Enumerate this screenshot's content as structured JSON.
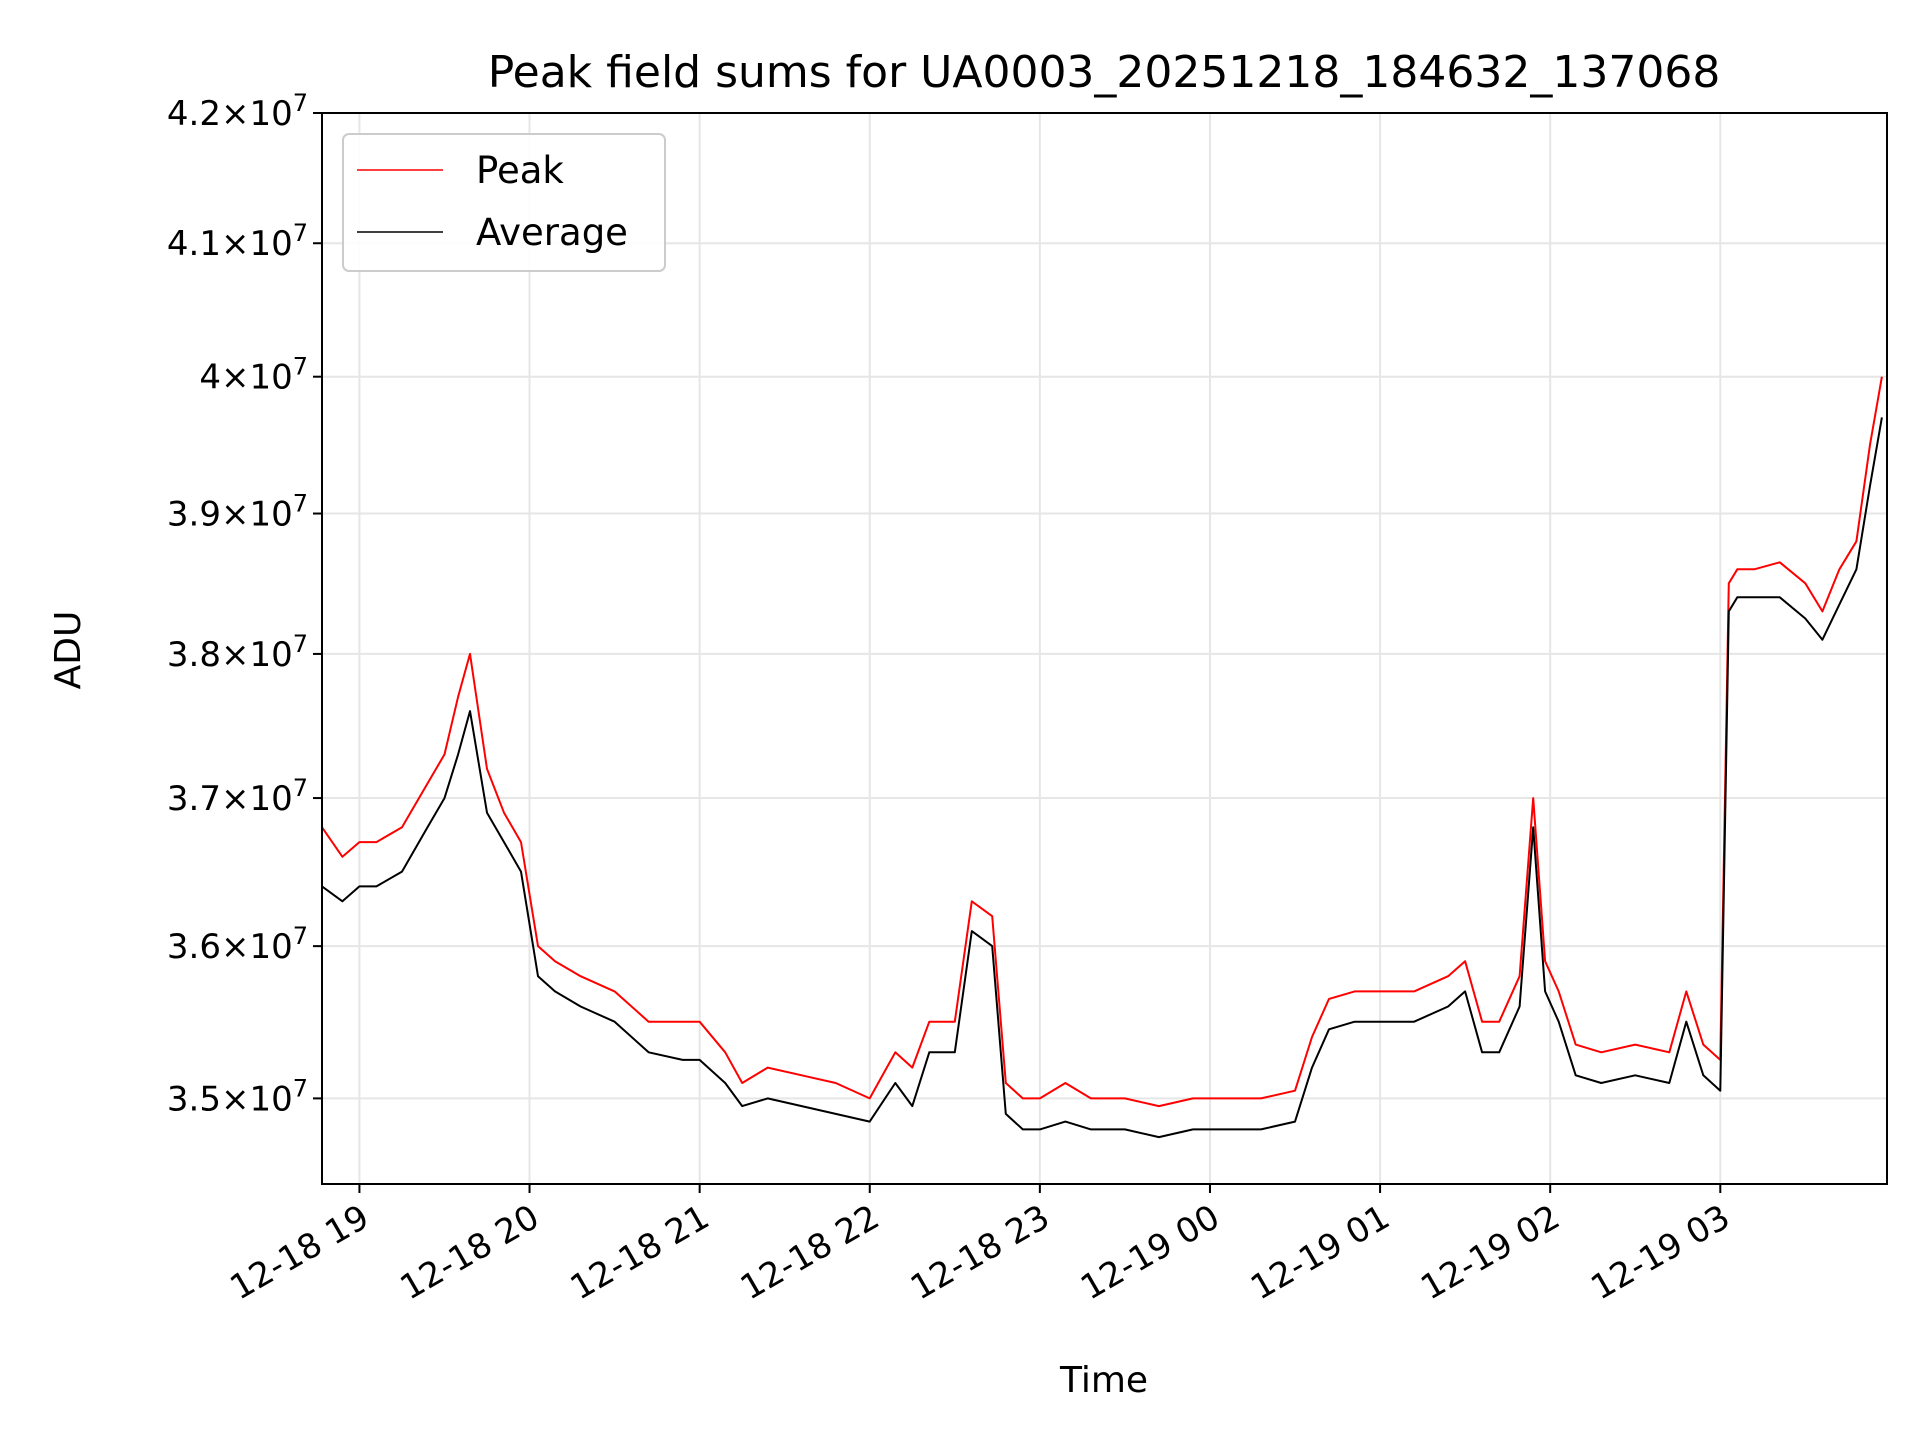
{
  "chart_data": {
    "type": "line",
    "title": "Peak field sums for UA0003_20251218_184632_137068",
    "xlabel": "Time",
    "ylabel": "ADU",
    "x_unit": "hours since 12-18 00:00",
    "xlim": [
      18.78,
      27.98
    ],
    "ylim": [
      34450000,
      42000000
    ],
    "y_scale": "log",
    "grid": true,
    "legend": "top-left",
    "x_ticks": [
      {
        "value": 19,
        "label": "12-18 19"
      },
      {
        "value": 20,
        "label": "12-18 20"
      },
      {
        "value": 21,
        "label": "12-18 21"
      },
      {
        "value": 22,
        "label": "12-18 22"
      },
      {
        "value": 23,
        "label": "12-18 23"
      },
      {
        "value": 24,
        "label": "12-19 00"
      },
      {
        "value": 25,
        "label": "12-19 01"
      },
      {
        "value": 26,
        "label": "12-19 02"
      },
      {
        "value": 27,
        "label": "12-19 03"
      }
    ],
    "y_ticks": [
      {
        "value": 35000000,
        "mantissa": "3.5",
        "exponent": "7"
      },
      {
        "value": 36000000,
        "mantissa": "3.6",
        "exponent": "7"
      },
      {
        "value": 37000000,
        "mantissa": "3.7",
        "exponent": "7"
      },
      {
        "value": 38000000,
        "mantissa": "3.8",
        "exponent": "7"
      },
      {
        "value": 39000000,
        "mantissa": "3.9",
        "exponent": "7"
      },
      {
        "value": 40000000,
        "mantissa": "4",
        "exponent": "7"
      },
      {
        "value": 41000000,
        "mantissa": "4.1",
        "exponent": "7"
      },
      {
        "value": 42000000,
        "mantissa": "4.2",
        "exponent": "7"
      }
    ],
    "series": [
      {
        "name": "Peak",
        "color": "#ff0000",
        "x": [
          18.78,
          18.9,
          19.0,
          19.1,
          19.25,
          19.4,
          19.5,
          19.58,
          19.65,
          19.75,
          19.85,
          19.95,
          20.05,
          20.15,
          20.3,
          20.5,
          20.7,
          20.9,
          21.0,
          21.15,
          21.25,
          21.4,
          21.6,
          21.8,
          22.0,
          22.15,
          22.25,
          22.35,
          22.5,
          22.6,
          22.72,
          22.8,
          22.9,
          23.0,
          23.15,
          23.3,
          23.5,
          23.7,
          23.9,
          24.1,
          24.3,
          24.5,
          24.6,
          24.7,
          24.85,
          25.0,
          25.2,
          25.4,
          25.5,
          25.6,
          25.7,
          25.82,
          25.9,
          25.97,
          26.05,
          26.15,
          26.3,
          26.5,
          26.7,
          26.8,
          26.9,
          27.0,
          27.05,
          27.1,
          27.2,
          27.35,
          27.5,
          27.6,
          27.7,
          27.8,
          27.88,
          27.95
        ],
        "values": [
          36800000,
          36600000,
          36700000,
          36700000,
          36800000,
          37100000,
          37300000,
          37700000,
          38000000,
          37200000,
          36900000,
          36700000,
          36000000,
          35900000,
          35800000,
          35700000,
          35500000,
          35500000,
          35500000,
          35300000,
          35100000,
          35200000,
          35150000,
          35100000,
          35000000,
          35300000,
          35200000,
          35500000,
          35500000,
          36300000,
          36200000,
          35100000,
          35000000,
          35000000,
          35100000,
          35000000,
          35000000,
          34950000,
          35000000,
          35000000,
          35000000,
          35050000,
          35400000,
          35650000,
          35700000,
          35700000,
          35700000,
          35800000,
          35900000,
          35500000,
          35500000,
          35800000,
          37000000,
          35900000,
          35700000,
          35350000,
          35300000,
          35350000,
          35300000,
          35700000,
          35350000,
          35250000,
          38500000,
          38600000,
          38600000,
          38650000,
          38500000,
          38300000,
          38600000,
          38800000,
          39500000,
          40000000
        ]
      },
      {
        "name": "Average",
        "color": "#000000",
        "x": [
          18.78,
          18.9,
          19.0,
          19.1,
          19.25,
          19.4,
          19.5,
          19.58,
          19.65,
          19.75,
          19.85,
          19.95,
          20.05,
          20.15,
          20.3,
          20.5,
          20.7,
          20.9,
          21.0,
          21.15,
          21.25,
          21.4,
          21.6,
          21.8,
          22.0,
          22.15,
          22.25,
          22.35,
          22.5,
          22.6,
          22.72,
          22.8,
          22.9,
          23.0,
          23.15,
          23.3,
          23.5,
          23.7,
          23.9,
          24.1,
          24.3,
          24.5,
          24.6,
          24.7,
          24.85,
          25.0,
          25.2,
          25.4,
          25.5,
          25.6,
          25.7,
          25.82,
          25.9,
          25.97,
          26.05,
          26.15,
          26.3,
          26.5,
          26.7,
          26.8,
          26.9,
          27.0,
          27.05,
          27.1,
          27.2,
          27.35,
          27.5,
          27.6,
          27.7,
          27.8,
          27.88,
          27.95
        ],
        "values": [
          36400000,
          36300000,
          36400000,
          36400000,
          36500000,
          36800000,
          37000000,
          37300000,
          37600000,
          36900000,
          36700000,
          36500000,
          35800000,
          35700000,
          35600000,
          35500000,
          35300000,
          35250000,
          35250000,
          35100000,
          34950000,
          35000000,
          34950000,
          34900000,
          34850000,
          35100000,
          34950000,
          35300000,
          35300000,
          36100000,
          36000000,
          34900000,
          34800000,
          34800000,
          34850000,
          34800000,
          34800000,
          34750000,
          34800000,
          34800000,
          34800000,
          34850000,
          35200000,
          35450000,
          35500000,
          35500000,
          35500000,
          35600000,
          35700000,
          35300000,
          35300000,
          35600000,
          36800000,
          35700000,
          35500000,
          35150000,
          35100000,
          35150000,
          35100000,
          35500000,
          35150000,
          35050000,
          38300000,
          38400000,
          38400000,
          38400000,
          38250000,
          38100000,
          38350000,
          38600000,
          39200000,
          39700000
        ]
      }
    ]
  }
}
